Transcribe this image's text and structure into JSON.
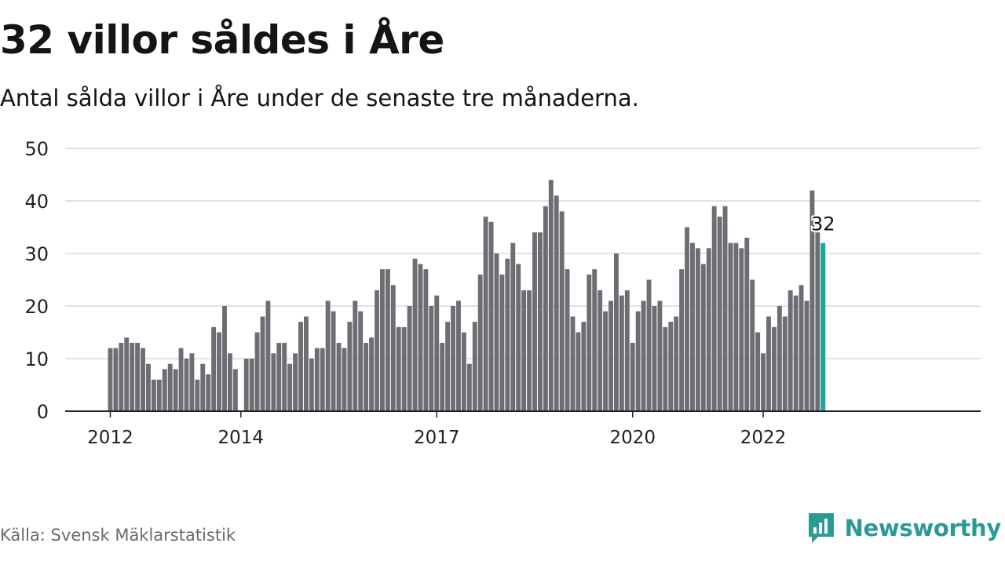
{
  "header": {
    "title": "32 villor såldes i Åre",
    "subtitle": "Antal sålda villor i Åre under de senaste tre månaderna."
  },
  "footer": {
    "source": "Källa: Svensk Mäklarstatistik",
    "brand": "Newsworthy",
    "brand_icon": "newsworthy-logo-icon"
  },
  "colors": {
    "bar": "#6e6d74",
    "highlight": "#15a89d",
    "grid": "#d9d9d9",
    "axis": "#222222",
    "brand": "#2c9a94"
  },
  "chart_data": {
    "type": "bar",
    "ylim": [
      0,
      50
    ],
    "yticks": [
      0,
      10,
      20,
      30,
      40,
      50
    ],
    "xtick_labels": [
      {
        "label": "2012",
        "index": 0
      },
      {
        "label": "2014",
        "index": 24
      },
      {
        "label": "2017",
        "index": 60
      },
      {
        "label": "2020",
        "index": 96
      },
      {
        "label": "2022",
        "index": 120
      }
    ],
    "annotation": {
      "label": "32",
      "index": 131
    },
    "grid": true,
    "values": [
      12,
      12,
      13,
      14,
      13,
      13,
      12,
      9,
      6,
      6,
      8,
      9,
      8,
      12,
      10,
      11,
      6,
      9,
      7,
      16,
      15,
      20,
      11,
      8,
      0,
      10,
      10,
      15,
      18,
      21,
      11,
      13,
      13,
      9,
      11,
      17,
      18,
      10,
      12,
      12,
      21,
      19,
      13,
      12,
      17,
      21,
      19,
      13,
      14,
      23,
      27,
      27,
      24,
      16,
      16,
      20,
      29,
      28,
      27,
      20,
      22,
      13,
      17,
      20,
      21,
      15,
      9,
      17,
      26,
      37,
      36,
      30,
      26,
      29,
      32,
      28,
      23,
      23,
      34,
      34,
      39,
      44,
      41,
      38,
      27,
      18,
      15,
      17,
      26,
      27,
      23,
      19,
      21,
      30,
      22,
      23,
      13,
      19,
      21,
      25,
      20,
      21,
      16,
      17,
      18,
      27,
      35,
      32,
      31,
      28,
      31,
      39,
      37,
      39,
      32,
      32,
      31,
      33,
      25,
      15,
      11,
      18,
      16,
      20,
      18,
      23,
      22,
      24,
      21,
      42,
      34,
      32
    ]
  }
}
